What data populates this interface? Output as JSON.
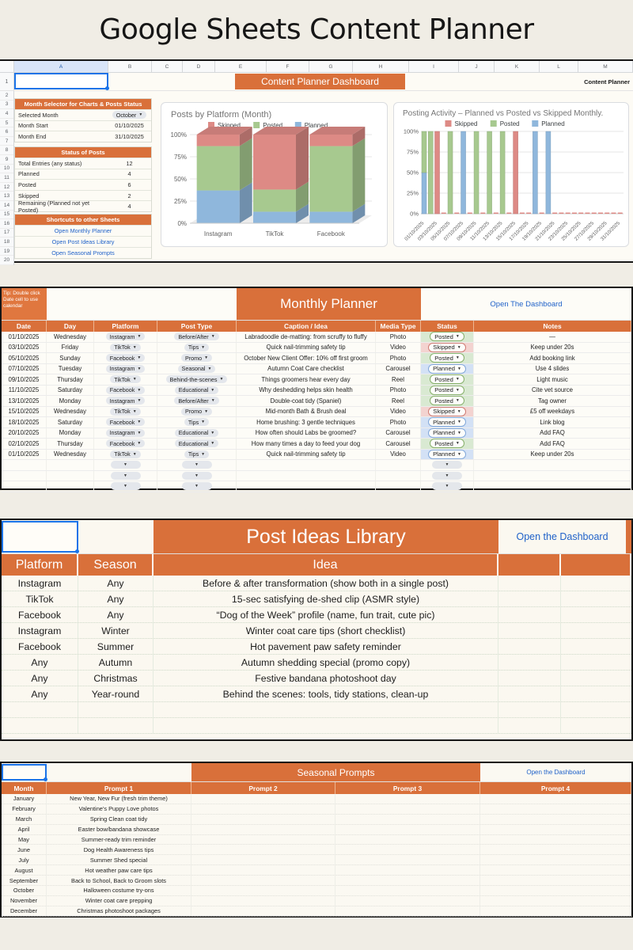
{
  "page": {
    "title": "Google Sheets Content Planner"
  },
  "colors": {
    "accent_orange": "#d9703a",
    "link_blue": "#2062c9",
    "selection_blue": "#1a73e8",
    "chart": {
      "Skipped": "#dd8a85",
      "Posted": "#a7c98f",
      "Planned": "#8fb7dc"
    },
    "status": {
      "Posted": {
        "bg": "#d9e9d2",
        "border": "#86b06a"
      },
      "Skipped": {
        "bg": "#f3d3d0",
        "border": "#cf7a72"
      },
      "Planned": {
        "bg": "#d3e1f5",
        "border": "#82a8da"
      }
    }
  },
  "dashboard": {
    "columns": [
      "A",
      "B",
      "C",
      "D",
      "E",
      "F",
      "G",
      "H",
      "I",
      "J",
      "K",
      "L",
      "M"
    ],
    "first_row_number": "1",
    "row_numbers_start": 2,
    "row_numbers_end": 20,
    "banner": "Content Planner Dashboard",
    "sheet_tab_label": "Content Planner",
    "month_selector": {
      "title": "Month Selector for Charts & Posts Status",
      "rows": [
        {
          "label": "Selected Month",
          "value": "October",
          "dropdown": true
        },
        {
          "label": "Month Start",
          "value": "01/10/2025"
        },
        {
          "label": "Month End",
          "value": "31/10/2025"
        }
      ]
    },
    "status_of_posts": {
      "title": "Status of Posts",
      "rows": [
        {
          "label": "Total Entries (any status)",
          "value": "12"
        },
        {
          "label": "Planned",
          "value": "4"
        },
        {
          "label": "Posted",
          "value": "6"
        },
        {
          "label": "Skipped",
          "value": "2"
        },
        {
          "label": "Remaining (Planned not yet Posted)",
          "value": "4"
        }
      ]
    },
    "shortcuts": {
      "title": "Shortcuts to other Sheets",
      "links": [
        "Open Monthly Planner",
        "Open Post Ideas Library",
        "Open Seasonal Prompts"
      ]
    }
  },
  "chart_data": [
    {
      "type": "bar",
      "subtype": "stacked-100-3d",
      "title": "Posts by Platform (Month)",
      "categories": [
        "Instagram",
        "TikTok",
        "Facebook"
      ],
      "series": [
        {
          "name": "Planned",
          "values": [
            37,
            13,
            13
          ]
        },
        {
          "name": "Posted",
          "values": [
            50,
            25,
            74
          ]
        },
        {
          "name": "Skipped",
          "values": [
            13,
            62,
            13
          ]
        }
      ],
      "legend_order": [
        "Skipped",
        "Posted",
        "Planned"
      ],
      "ylim": [
        0,
        100
      ],
      "yticks": [
        0,
        25,
        50,
        75,
        100
      ],
      "ytick_labels": [
        "0%",
        "25%",
        "50%",
        "75%",
        "100%"
      ],
      "grid": true,
      "legend_position": "top"
    },
    {
      "type": "bar",
      "subtype": "stacked-daily",
      "title": "Posting Activity – Planned vs Posted vs Skipped Monthly.",
      "days_in_month": 31,
      "x_labels": [
        "01/10/2025",
        "03/10/2025",
        "05/10/2025",
        "07/10/2025",
        "09/10/2025",
        "11/10/2025",
        "13/10/2025",
        "15/10/2025",
        "17/10/2025",
        "19/10/2025",
        "21/10/2025",
        "23/10/2025",
        "25/10/2025",
        "27/10/2025",
        "29/10/2025",
        "31/10/2025"
      ],
      "bars": [
        {
          "day": 1,
          "segments": [
            {
              "name": "Planned",
              "pct": 50
            },
            {
              "name": "Posted",
              "pct": 50
            }
          ]
        },
        {
          "day": 2,
          "segments": [
            {
              "name": "Posted",
              "pct": 100
            }
          ]
        },
        {
          "day": 3,
          "segments": [
            {
              "name": "Skipped",
              "pct": 100
            }
          ]
        },
        {
          "day": 5,
          "segments": [
            {
              "name": "Posted",
              "pct": 100
            }
          ]
        },
        {
          "day": 7,
          "segments": [
            {
              "name": "Planned",
              "pct": 100
            }
          ]
        },
        {
          "day": 9,
          "segments": [
            {
              "name": "Posted",
              "pct": 100
            }
          ]
        },
        {
          "day": 11,
          "segments": [
            {
              "name": "Posted",
              "pct": 100
            }
          ]
        },
        {
          "day": 13,
          "segments": [
            {
              "name": "Posted",
              "pct": 100
            }
          ]
        },
        {
          "day": 15,
          "segments": [
            {
              "name": "Skipped",
              "pct": 100
            }
          ]
        },
        {
          "day": 18,
          "segments": [
            {
              "name": "Planned",
              "pct": 100
            }
          ]
        },
        {
          "day": 20,
          "segments": [
            {
              "name": "Planned",
              "pct": 100
            }
          ]
        }
      ],
      "legend_order": [
        "Skipped",
        "Posted",
        "Planned"
      ],
      "ylim": [
        0,
        100
      ],
      "yticks": [
        0,
        25,
        50,
        75,
        100
      ],
      "ytick_labels": [
        "0%",
        "25%",
        "50%",
        "75%",
        "100%"
      ],
      "grid": true,
      "legend_position": "top"
    }
  ],
  "monthly_planner": {
    "tip": "Tip: Double click Date cell to use calendar",
    "banner": "Monthly Planner",
    "open_link": "Open The Dashboard",
    "headers": [
      "Date",
      "Day",
      "Platform",
      "Post Type",
      "Caption / Idea",
      "Media Type",
      "Status",
      "Notes"
    ],
    "rows": [
      {
        "date": "01/10/2025",
        "day": "Wednesday",
        "platform": "Instagram",
        "post_type": "Before/After",
        "caption": "Labradoodle de-matting: from scruffy to fluffy",
        "media": "Photo",
        "status": "Posted",
        "notes": "—"
      },
      {
        "date": "03/10/2025",
        "day": "Friday",
        "platform": "TikTok",
        "post_type": "Tips",
        "caption": "Quick nail-trimming safety tip",
        "media": "Video",
        "status": "Skipped",
        "notes": "Keep under 20s"
      },
      {
        "date": "05/10/2025",
        "day": "Sunday",
        "platform": "Facebook",
        "post_type": "Promo",
        "caption": "October New Client Offer: 10% off first groom",
        "media": "Photo",
        "status": "Posted",
        "notes": "Add booking link"
      },
      {
        "date": "07/10/2025",
        "day": "Tuesday",
        "platform": "Instagram",
        "post_type": "Seasonal",
        "caption": "Autumn Coat Care checklist",
        "media": "Carousel",
        "status": "Planned",
        "notes": "Use 4 slides"
      },
      {
        "date": "09/10/2025",
        "day": "Thursday",
        "platform": "TikTok",
        "post_type": "Behind-the-scenes",
        "caption": "Things groomers hear every day",
        "media": "Reel",
        "status": "Posted",
        "notes": "Light music"
      },
      {
        "date": "11/10/2025",
        "day": "Saturday",
        "platform": "Facebook",
        "post_type": "Educational",
        "caption": "Why deshedding helps skin health",
        "media": "Photo",
        "status": "Posted",
        "notes": "Cite vet source"
      },
      {
        "date": "13/10/2025",
        "day": "Monday",
        "platform": "Instagram",
        "post_type": "Before/After",
        "caption": "Double-coat tidy (Spaniel)",
        "media": "Reel",
        "status": "Posted",
        "notes": "Tag owner"
      },
      {
        "date": "15/10/2025",
        "day": "Wednesday",
        "platform": "TikTok",
        "post_type": "Promo",
        "caption": "Mid-month Bath & Brush deal",
        "media": "Video",
        "status": "Skipped",
        "notes": "£5 off weekdays"
      },
      {
        "date": "18/10/2025",
        "day": "Saturday",
        "platform": "Facebook",
        "post_type": "Tips",
        "caption": "Home brushing: 3 gentle techniques",
        "media": "Photo",
        "status": "Planned",
        "notes": "Link blog"
      },
      {
        "date": "20/10/2025",
        "day": "Monday",
        "platform": "Instagram",
        "post_type": "Educational",
        "caption": "How often should Labs be groomed?",
        "media": "Carousel",
        "status": "Planned",
        "notes": "Add FAQ"
      },
      {
        "date": "02/10/2025",
        "day": "Thursday",
        "platform": "Facebook",
        "post_type": "Educational",
        "caption": "How many times a day to feed your dog",
        "media": "Carousel",
        "status": "Posted",
        "notes": "Add FAQ"
      },
      {
        "date": "01/10/2025",
        "day": "Wednesday",
        "platform": "TikTok",
        "post_type": "Tips",
        "caption": "Quick nail-trimming safety tip",
        "media": "Video",
        "status": "Planned",
        "notes": "Keep under 20s"
      }
    ],
    "empty_rows": 3
  },
  "post_ideas": {
    "banner": "Post Ideas Library",
    "open_link": "Open the Dashboard",
    "headers": [
      "Platform",
      "Season",
      "Idea"
    ],
    "rows": [
      {
        "platform": "Instagram",
        "season": "Any",
        "idea": "Before & after transformation (show both in a single post)"
      },
      {
        "platform": "TikTok",
        "season": "Any",
        "idea": "15-sec satisfying de-shed clip (ASMR style)"
      },
      {
        "platform": "Facebook",
        "season": "Any",
        "idea": "“Dog of the Week” profile (name, fun trait, cute pic)"
      },
      {
        "platform": "Instagram",
        "season": "Winter",
        "idea": "Winter coat care tips (short checklist)"
      },
      {
        "platform": "Facebook",
        "season": "Summer",
        "idea": "Hot pavement paw safety reminder"
      },
      {
        "platform": "Any",
        "season": "Autumn",
        "idea": "Autumn shedding special (promo copy)"
      },
      {
        "platform": "Any",
        "season": "Christmas",
        "idea": "Festive bandana photoshoot day"
      },
      {
        "platform": "Any",
        "season": "Year-round",
        "idea": "Behind the scenes: tools, tidy stations, clean-up"
      }
    ],
    "empty_rows": 2
  },
  "seasonal_prompts": {
    "banner": "Seasonal Prompts",
    "open_link": "Open the Dashboard",
    "headers": [
      "Month",
      "Prompt 1",
      "Prompt 2",
      "Prompt 3",
      "Prompt 4"
    ],
    "rows": [
      {
        "month": "January",
        "p1": "New Year, New Fur (fresh trim theme)",
        "p2": "",
        "p3": "",
        "p4": ""
      },
      {
        "month": "February",
        "p1": "Valentine's Puppy Love photos",
        "p2": "",
        "p3": "",
        "p4": ""
      },
      {
        "month": "March",
        "p1": "Spring Clean coat tidy",
        "p2": "",
        "p3": "",
        "p4": ""
      },
      {
        "month": "April",
        "p1": "Easter bow/bandana showcase",
        "p2": "",
        "p3": "",
        "p4": ""
      },
      {
        "month": "May",
        "p1": "Summer-ready trim reminder",
        "p2": "",
        "p3": "",
        "p4": ""
      },
      {
        "month": "June",
        "p1": "Dog Health Awareness tips",
        "p2": "",
        "p3": "",
        "p4": ""
      },
      {
        "month": "July",
        "p1": "Summer Shed special",
        "p2": "",
        "p3": "",
        "p4": ""
      },
      {
        "month": "August",
        "p1": "Hot weather paw care tips",
        "p2": "",
        "p3": "",
        "p4": ""
      },
      {
        "month": "September",
        "p1": "Back to School, Back to Groom slots",
        "p2": "",
        "p3": "",
        "p4": ""
      },
      {
        "month": "October",
        "p1": "Halloween costume try-ons",
        "p2": "",
        "p3": "",
        "p4": ""
      },
      {
        "month": "November",
        "p1": "Winter coat care prepping",
        "p2": "",
        "p3": "",
        "p4": ""
      },
      {
        "month": "December",
        "p1": "Christmas photoshoot packages",
        "p2": "",
        "p3": "",
        "p4": ""
      }
    ]
  }
}
